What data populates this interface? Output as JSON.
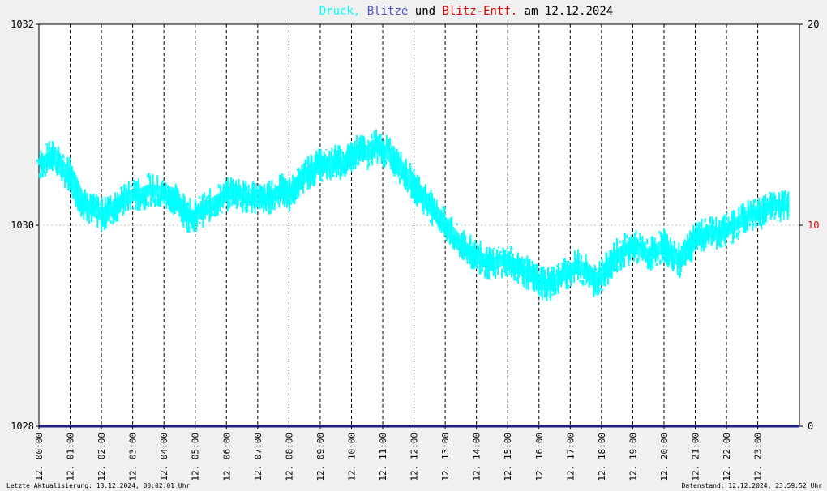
{
  "header": {
    "parts": [
      {
        "text": "Druck",
        "color": "#00ffff"
      },
      {
        "text": ", ",
        "color": "#00ffff"
      },
      {
        "text": "Blitze",
        "color": "#5050c0"
      },
      {
        "text": " und ",
        "color": "#000000"
      },
      {
        "text": "Blitz-Entf.",
        "color": "#e00000"
      },
      {
        "text": " am 12.12.2024",
        "color": "#000000"
      }
    ]
  },
  "footer": {
    "left": "Letzte Aktualisierung: 13.12.2024, 00:02:01 Uhr",
    "right": "Datenstand: 12.12.2024, 23:59:52 Uhr"
  },
  "colors": {
    "pressure": "#00ffff",
    "lightning": "#20208a",
    "distance": "#e00000",
    "grid": "#000000",
    "bg": "#ffffff"
  },
  "chart_data": {
    "type": "line",
    "title": "Druck, Blitze und Blitz-Entf. am 12.12.2024",
    "x_ticks": [
      "12. 00:00",
      "12. 01:00",
      "12. 02:00",
      "12. 03:00",
      "12. 04:00",
      "12. 05:00",
      "12. 06:00",
      "12. 07:00",
      "12. 08:00",
      "12. 09:00",
      "12. 10:00",
      "12. 11:00",
      "12. 12:00",
      "12. 13:00",
      "12. 14:00",
      "12. 15:00",
      "12. 16:00",
      "12. 17:00",
      "12. 18:00",
      "12. 19:00",
      "12. 20:00",
      "12. 21:00",
      "12. 22:00",
      "12. 23:00"
    ],
    "y_left": {
      "ticks": [
        "1032",
        "1030",
        "1028"
      ],
      "ylim": [
        1028,
        1032
      ]
    },
    "y_right": {
      "ticks": [
        "20",
        "10",
        "0"
      ],
      "ylim": [
        0,
        20
      ],
      "mid_color": "#e00000"
    },
    "xlim_hours": [
      0,
      24.333
    ],
    "series": [
      {
        "color": "#00ffff",
        "x_hours": [
          0.0,
          0.25,
          0.5,
          0.75,
          1.0,
          1.25,
          1.5,
          1.75,
          2.0,
          2.25,
          2.5,
          2.75,
          3.0,
          3.25,
          3.5,
          3.75,
          4.0,
          4.25,
          4.5,
          4.75,
          5.0,
          5.25,
          5.5,
          5.75,
          6.0,
          6.25,
          6.5,
          6.75,
          7.0,
          7.25,
          7.5,
          7.75,
          8.0,
          8.25,
          8.5,
          8.75,
          9.0,
          9.25,
          9.5,
          9.75,
          10.0,
          10.25,
          10.5,
          10.75,
          11.0,
          11.25,
          11.5,
          11.75,
          12.0,
          12.25,
          12.5,
          12.75,
          13.0,
          13.25,
          13.5,
          13.75,
          14.0,
          14.25,
          14.5,
          14.75,
          15.0,
          15.25,
          15.5,
          15.75,
          16.0,
          16.25,
          16.5,
          16.75,
          17.0,
          17.25,
          17.5,
          17.75,
          18.0,
          18.25,
          18.5,
          18.75,
          19.0,
          19.25,
          19.5,
          19.75,
          20.0,
          20.25,
          20.5,
          20.75,
          21.0,
          21.25,
          21.5,
          21.75,
          22.0,
          22.25,
          22.5,
          22.75,
          23.0,
          23.25,
          23.5,
          23.75,
          24.0
        ],
        "values": [
          1030.6,
          1030.65,
          1030.7,
          1030.55,
          1030.5,
          1030.3,
          1030.2,
          1030.15,
          1030.1,
          1030.15,
          1030.2,
          1030.25,
          1030.3,
          1030.3,
          1030.35,
          1030.35,
          1030.3,
          1030.3,
          1030.2,
          1030.1,
          1030.1,
          1030.15,
          1030.2,
          1030.25,
          1030.3,
          1030.35,
          1030.3,
          1030.25,
          1030.3,
          1030.25,
          1030.3,
          1030.35,
          1030.3,
          1030.4,
          1030.5,
          1030.55,
          1030.6,
          1030.6,
          1030.65,
          1030.6,
          1030.7,
          1030.75,
          1030.7,
          1030.8,
          1030.75,
          1030.7,
          1030.6,
          1030.5,
          1030.4,
          1030.3,
          1030.2,
          1030.1,
          1030.0,
          1029.9,
          1029.8,
          1029.75,
          1029.7,
          1029.65,
          1029.6,
          1029.65,
          1029.65,
          1029.6,
          1029.55,
          1029.5,
          1029.45,
          1029.4,
          1029.45,
          1029.5,
          1029.55,
          1029.6,
          1029.55,
          1029.45,
          1029.5,
          1029.6,
          1029.7,
          1029.75,
          1029.8,
          1029.75,
          1029.7,
          1029.75,
          1029.8,
          1029.7,
          1029.65,
          1029.75,
          1029.85,
          1029.9,
          1029.95,
          1029.9,
          1029.95,
          1030.0,
          1030.05,
          1030.1,
          1030.1,
          1030.15,
          1030.2,
          1030.2,
          1030.2
        ]
      },
      {
        "color": "#20208a",
        "x_hours": [
          0.0,
          24.333
        ],
        "values": [
          0,
          0
        ]
      }
    ]
  }
}
